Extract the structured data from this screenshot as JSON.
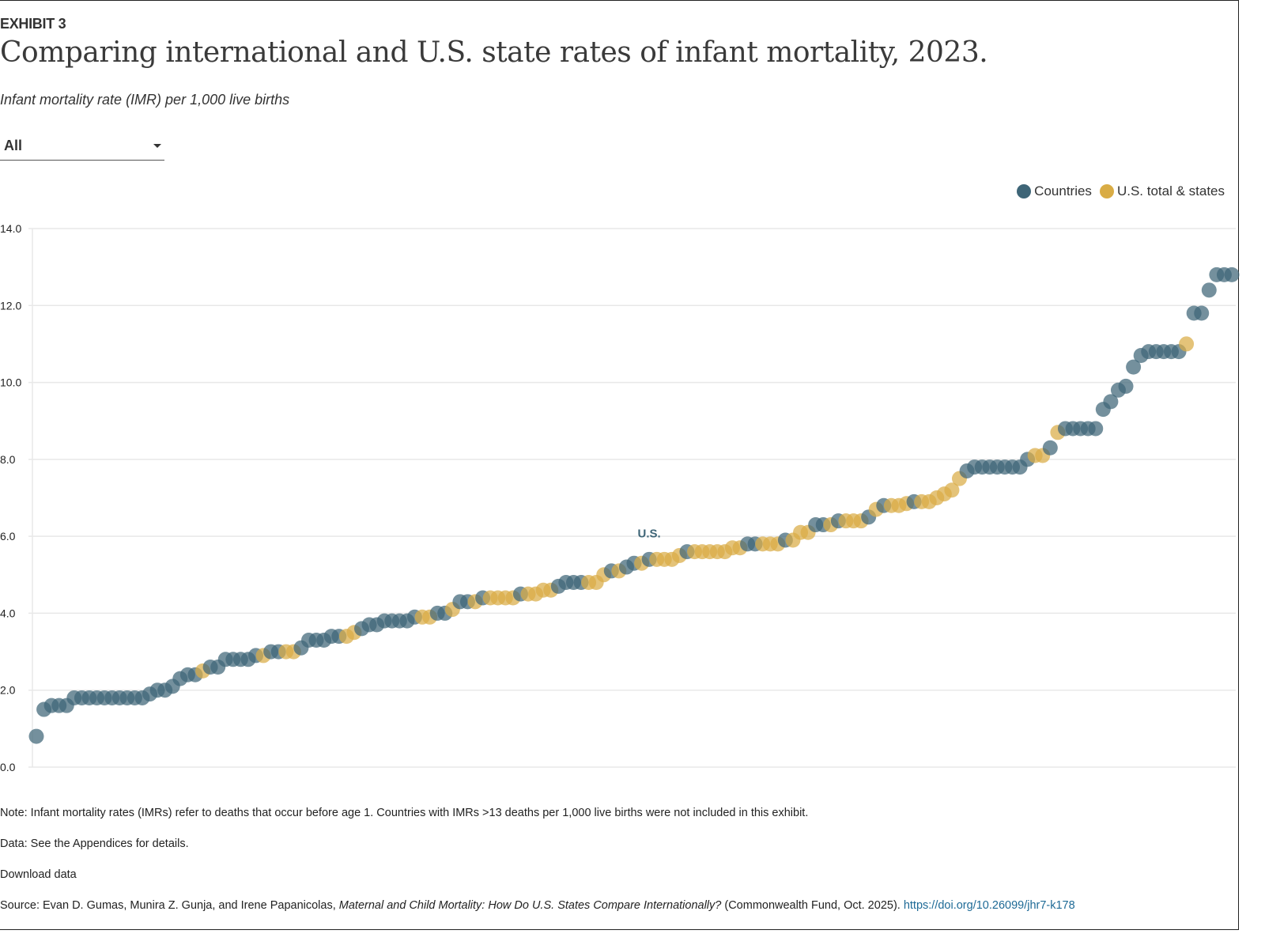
{
  "header": {
    "exhibit": "EXHIBIT 3",
    "title": "Comparing international and U.S. state rates of infant mortality, 2023.",
    "subtitle": "Infant mortality rate (IMR) per 1,000 live births"
  },
  "filter": {
    "selected": "All"
  },
  "legend": [
    {
      "label": "Countries",
      "color": "#3e6577"
    },
    {
      "label": "U.S. total & states",
      "color": "#d9ac45"
    }
  ],
  "chart_data": {
    "type": "scatter",
    "title": "Comparing international and U.S. state rates of infant mortality, 2023.",
    "ylabel": "Infant mortality rate (IMR) per 1,000 live births",
    "ylim": [
      0,
      14
    ],
    "yticks": [
      "0.0",
      "2.0",
      "4.0",
      "6.0",
      "8.0",
      "10.0",
      "12.0",
      "14.0"
    ],
    "grid": true,
    "legend_position": "top-right",
    "series_colors": {
      "country": "#3e6577",
      "state": "#d9ac45"
    },
    "annotation": {
      "label": "U.S.",
      "point_value": 5.4
    },
    "points": [
      {
        "v": 0.8,
        "g": "country"
      },
      {
        "v": 1.5,
        "g": "country"
      },
      {
        "v": 1.6,
        "g": "country"
      },
      {
        "v": 1.6,
        "g": "country"
      },
      {
        "v": 1.6,
        "g": "country"
      },
      {
        "v": 1.8,
        "g": "country"
      },
      {
        "v": 1.8,
        "g": "country"
      },
      {
        "v": 1.8,
        "g": "country"
      },
      {
        "v": 1.8,
        "g": "country"
      },
      {
        "v": 1.8,
        "g": "country"
      },
      {
        "v": 1.8,
        "g": "country"
      },
      {
        "v": 1.8,
        "g": "country"
      },
      {
        "v": 1.8,
        "g": "country"
      },
      {
        "v": 1.8,
        "g": "country"
      },
      {
        "v": 1.8,
        "g": "country"
      },
      {
        "v": 1.9,
        "g": "country"
      },
      {
        "v": 2.0,
        "g": "country"
      },
      {
        "v": 2.0,
        "g": "country"
      },
      {
        "v": 2.1,
        "g": "country"
      },
      {
        "v": 2.3,
        "g": "country"
      },
      {
        "v": 2.4,
        "g": "country"
      },
      {
        "v": 2.4,
        "g": "country"
      },
      {
        "v": 2.5,
        "g": "state"
      },
      {
        "v": 2.6,
        "g": "country"
      },
      {
        "v": 2.6,
        "g": "country"
      },
      {
        "v": 2.8,
        "g": "country"
      },
      {
        "v": 2.8,
        "g": "country"
      },
      {
        "v": 2.8,
        "g": "country"
      },
      {
        "v": 2.8,
        "g": "country"
      },
      {
        "v": 2.9,
        "g": "country"
      },
      {
        "v": 2.9,
        "g": "state"
      },
      {
        "v": 3.0,
        "g": "country"
      },
      {
        "v": 3.0,
        "g": "country"
      },
      {
        "v": 3.0,
        "g": "state"
      },
      {
        "v": 3.0,
        "g": "state"
      },
      {
        "v": 3.1,
        "g": "country"
      },
      {
        "v": 3.3,
        "g": "country"
      },
      {
        "v": 3.3,
        "g": "country"
      },
      {
        "v": 3.3,
        "g": "country"
      },
      {
        "v": 3.4,
        "g": "country"
      },
      {
        "v": 3.4,
        "g": "country"
      },
      {
        "v": 3.4,
        "g": "state"
      },
      {
        "v": 3.5,
        "g": "state"
      },
      {
        "v": 3.6,
        "g": "country"
      },
      {
        "v": 3.7,
        "g": "country"
      },
      {
        "v": 3.7,
        "g": "country"
      },
      {
        "v": 3.8,
        "g": "country"
      },
      {
        "v": 3.8,
        "g": "country"
      },
      {
        "v": 3.8,
        "g": "country"
      },
      {
        "v": 3.8,
        "g": "country"
      },
      {
        "v": 3.9,
        "g": "country"
      },
      {
        "v": 3.9,
        "g": "state"
      },
      {
        "v": 3.9,
        "g": "state"
      },
      {
        "v": 4.0,
        "g": "country"
      },
      {
        "v": 4.0,
        "g": "country"
      },
      {
        "v": 4.1,
        "g": "state"
      },
      {
        "v": 4.3,
        "g": "country"
      },
      {
        "v": 4.3,
        "g": "country"
      },
      {
        "v": 4.3,
        "g": "state"
      },
      {
        "v": 4.4,
        "g": "country"
      },
      {
        "v": 4.4,
        "g": "state"
      },
      {
        "v": 4.4,
        "g": "state"
      },
      {
        "v": 4.4,
        "g": "state"
      },
      {
        "v": 4.4,
        "g": "state"
      },
      {
        "v": 4.5,
        "g": "country"
      },
      {
        "v": 4.5,
        "g": "state"
      },
      {
        "v": 4.5,
        "g": "state"
      },
      {
        "v": 4.6,
        "g": "state"
      },
      {
        "v": 4.6,
        "g": "state"
      },
      {
        "v": 4.7,
        "g": "country"
      },
      {
        "v": 4.8,
        "g": "country"
      },
      {
        "v": 4.8,
        "g": "country"
      },
      {
        "v": 4.8,
        "g": "country"
      },
      {
        "v": 4.8,
        "g": "state"
      },
      {
        "v": 4.8,
        "g": "state"
      },
      {
        "v": 5.0,
        "g": "state"
      },
      {
        "v": 5.1,
        "g": "country"
      },
      {
        "v": 5.1,
        "g": "state"
      },
      {
        "v": 5.2,
        "g": "country"
      },
      {
        "v": 5.3,
        "g": "country"
      },
      {
        "v": 5.3,
        "g": "state"
      },
      {
        "v": 5.4,
        "g": "country"
      },
      {
        "v": 5.4,
        "g": "state"
      },
      {
        "v": 5.4,
        "g": "state"
      },
      {
        "v": 5.4,
        "g": "state"
      },
      {
        "v": 5.5,
        "g": "state"
      },
      {
        "v": 5.6,
        "g": "country"
      },
      {
        "v": 5.6,
        "g": "state"
      },
      {
        "v": 5.6,
        "g": "state"
      },
      {
        "v": 5.6,
        "g": "state"
      },
      {
        "v": 5.6,
        "g": "state"
      },
      {
        "v": 5.6,
        "g": "state"
      },
      {
        "v": 5.7,
        "g": "state"
      },
      {
        "v": 5.7,
        "g": "state"
      },
      {
        "v": 5.8,
        "g": "country"
      },
      {
        "v": 5.8,
        "g": "country"
      },
      {
        "v": 5.8,
        "g": "state"
      },
      {
        "v": 5.8,
        "g": "state"
      },
      {
        "v": 5.8,
        "g": "state"
      },
      {
        "v": 5.9,
        "g": "country"
      },
      {
        "v": 5.9,
        "g": "state"
      },
      {
        "v": 6.1,
        "g": "state"
      },
      {
        "v": 6.1,
        "g": "state"
      },
      {
        "v": 6.3,
        "g": "country"
      },
      {
        "v": 6.3,
        "g": "country"
      },
      {
        "v": 6.3,
        "g": "state"
      },
      {
        "v": 6.4,
        "g": "country"
      },
      {
        "v": 6.4,
        "g": "state"
      },
      {
        "v": 6.4,
        "g": "state"
      },
      {
        "v": 6.4,
        "g": "state"
      },
      {
        "v": 6.5,
        "g": "country"
      },
      {
        "v": 6.7,
        "g": "state"
      },
      {
        "v": 6.8,
        "g": "country"
      },
      {
        "v": 6.8,
        "g": "state"
      },
      {
        "v": 6.8,
        "g": "state"
      },
      {
        "v": 6.85,
        "g": "state"
      },
      {
        "v": 6.9,
        "g": "country"
      },
      {
        "v": 6.9,
        "g": "state"
      },
      {
        "v": 6.9,
        "g": "state"
      },
      {
        "v": 7.0,
        "g": "state"
      },
      {
        "v": 7.1,
        "g": "state"
      },
      {
        "v": 7.2,
        "g": "state"
      },
      {
        "v": 7.5,
        "g": "state"
      },
      {
        "v": 7.7,
        "g": "country"
      },
      {
        "v": 7.8,
        "g": "country"
      },
      {
        "v": 7.8,
        "g": "country"
      },
      {
        "v": 7.8,
        "g": "country"
      },
      {
        "v": 7.8,
        "g": "country"
      },
      {
        "v": 7.8,
        "g": "country"
      },
      {
        "v": 7.8,
        "g": "country"
      },
      {
        "v": 7.8,
        "g": "country"
      },
      {
        "v": 8.0,
        "g": "country"
      },
      {
        "v": 8.1,
        "g": "state"
      },
      {
        "v": 8.1,
        "g": "state"
      },
      {
        "v": 8.3,
        "g": "country"
      },
      {
        "v": 8.7,
        "g": "state"
      },
      {
        "v": 8.8,
        "g": "country"
      },
      {
        "v": 8.8,
        "g": "country"
      },
      {
        "v": 8.8,
        "g": "country"
      },
      {
        "v": 8.8,
        "g": "country"
      },
      {
        "v": 8.8,
        "g": "country"
      },
      {
        "v": 9.3,
        "g": "country"
      },
      {
        "v": 9.5,
        "g": "country"
      },
      {
        "v": 9.8,
        "g": "country"
      },
      {
        "v": 9.9,
        "g": "country"
      },
      {
        "v": 10.4,
        "g": "country"
      },
      {
        "v": 10.7,
        "g": "country"
      },
      {
        "v": 10.8,
        "g": "country"
      },
      {
        "v": 10.8,
        "g": "country"
      },
      {
        "v": 10.8,
        "g": "country"
      },
      {
        "v": 10.8,
        "g": "country"
      },
      {
        "v": 10.8,
        "g": "country"
      },
      {
        "v": 11.0,
        "g": "state"
      },
      {
        "v": 11.8,
        "g": "country"
      },
      {
        "v": 11.8,
        "g": "country"
      },
      {
        "v": 12.4,
        "g": "country"
      },
      {
        "v": 12.8,
        "g": "country"
      },
      {
        "v": 12.8,
        "g": "country"
      },
      {
        "v": 12.8,
        "g": "country"
      }
    ]
  },
  "footer": {
    "note": "Note: Infant mortality rates (IMRs) refer to deaths that occur before age 1. Countries with IMRs >13 deaths per 1,000 live births were not included in this exhibit.",
    "data": "Data: See the Appendices for details.",
    "download": "Download data",
    "source_prefix": "Source: Evan D. Gumas, Munira Z. Gunja, and Irene Papanicolas, ",
    "source_title": "Maternal and Child Mortality: How Do U.S. States Compare Internationally?",
    "source_suffix": " (Commonwealth Fund, Oct. 2025). ",
    "source_link": "https://doi.org/10.26099/jhr7-k178"
  }
}
